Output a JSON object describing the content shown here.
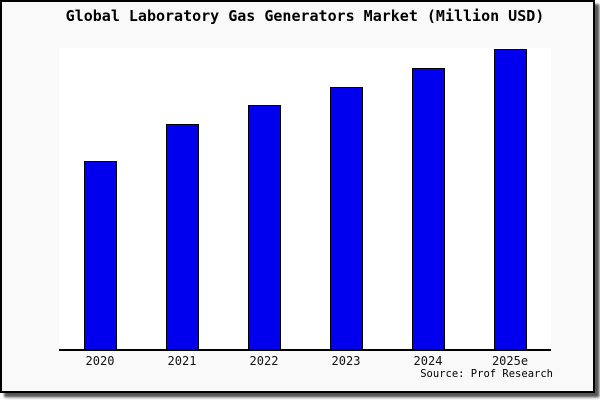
{
  "window": {
    "canvas_background": "#f9f9f9",
    "plot_background": "#ffffff",
    "frame_border_color": "#000000"
  },
  "chart_data": {
    "type": "bar",
    "title": "Global Laboratory Gas Generators Market (Million USD)",
    "categories": [
      "2020",
      "2021",
      "2022",
      "2023",
      "2024",
      "2025e"
    ],
    "values": [
      62.3,
      74.7,
      81.0,
      87.2,
      93.3,
      99.6
    ],
    "values_note": "relative bar heights as percent of plot height; chart displays no y-axis tick values",
    "xlabel": "",
    "ylabel": "",
    "ylim": [
      0,
      100
    ],
    "grid": false,
    "legend": false,
    "y_axis_visible": false,
    "x_axis_line": true,
    "bar_color": "#0000EE",
    "bar_edge_color": "#000000",
    "source": "Source: Prof Research"
  }
}
